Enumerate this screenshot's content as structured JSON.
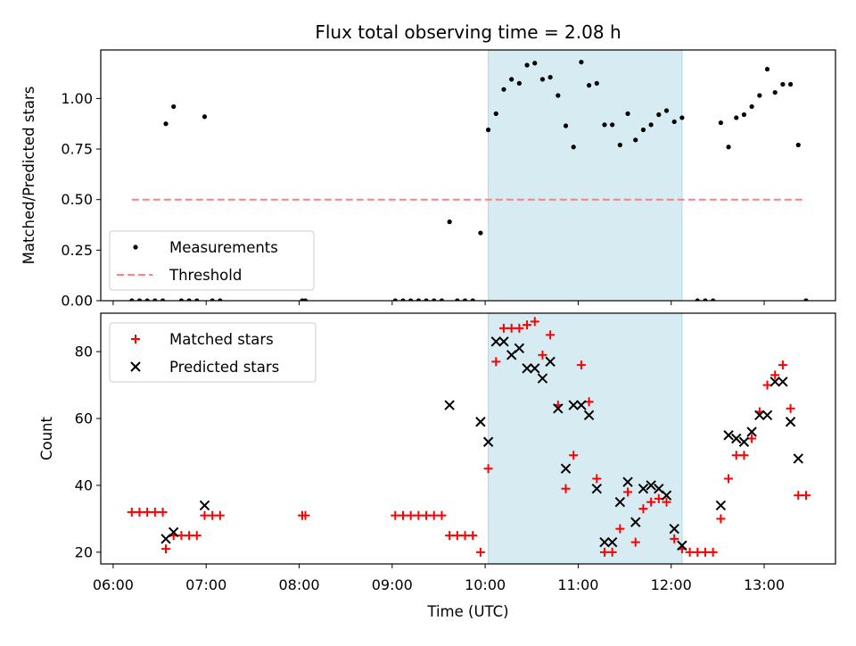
{
  "chart_data": {
    "title": "Flux total observing time = 2.08 h",
    "xlabel": "Time (UTC)",
    "x_tick_labels": [
      "06:00",
      "07:00",
      "08:00",
      "09:00",
      "10:00",
      "11:00",
      "12:00",
      "13:00"
    ],
    "shaded_interval": [
      "10:02",
      "12:07"
    ],
    "shade_color": "#add8e6",
    "panels": [
      {
        "type": "scatter",
        "ylabel": "Matched/Predicted stars",
        "ylim": [
          0,
          1.24
        ],
        "y_tick_labels": [
          "0.00",
          "0.25",
          "0.50",
          "0.75",
          "1.00"
        ],
        "legend_position": "lower-left",
        "series": [
          {
            "name": "Measurements",
            "marker": "dot",
            "color": "#000000",
            "points": [
              [
                "06:12",
                0
              ],
              [
                "06:17",
                0
              ],
              [
                "06:22",
                0
              ],
              [
                "06:27",
                0
              ],
              [
                "06:32",
                0
              ],
              [
                "06:34",
                0.875
              ],
              [
                "06:39",
                0.96
              ],
              [
                "06:44",
                0
              ],
              [
                "06:49",
                0
              ],
              [
                "06:54",
                0
              ],
              [
                "06:59",
                0.91
              ],
              [
                "07:04",
                0
              ],
              [
                "07:09",
                0
              ],
              [
                "08:02",
                0
              ],
              [
                "08:04",
                0
              ],
              [
                "09:02",
                0
              ],
              [
                "09:07",
                0
              ],
              [
                "09:12",
                0
              ],
              [
                "09:17",
                0
              ],
              [
                "09:22",
                0
              ],
              [
                "09:27",
                0
              ],
              [
                "09:32",
                0
              ],
              [
                "09:37",
                0.39
              ],
              [
                "09:42",
                0
              ],
              [
                "09:47",
                0
              ],
              [
                "09:52",
                0
              ],
              [
                "09:57",
                0.335
              ],
              [
                "10:02",
                0.845
              ],
              [
                "10:07",
                0.925
              ],
              [
                "10:12",
                1.045
              ],
              [
                "10:17",
                1.095
              ],
              [
                "10:22",
                1.075
              ],
              [
                "10:27",
                1.165
              ],
              [
                "10:32",
                1.175
              ],
              [
                "10:37",
                1.095
              ],
              [
                "10:42",
                1.105
              ],
              [
                "10:47",
                1.015
              ],
              [
                "10:52",
                0.865
              ],
              [
                "10:57",
                0.76
              ],
              [
                "11:02",
                1.18
              ],
              [
                "11:07",
                1.065
              ],
              [
                "11:12",
                1.075
              ],
              [
                "11:17",
                0.87
              ],
              [
                "11:22",
                0.87
              ],
              [
                "11:27",
                0.77
              ],
              [
                "11:32",
                0.925
              ],
              [
                "11:37",
                0.795
              ],
              [
                "11:42",
                0.845
              ],
              [
                "11:47",
                0.87
              ],
              [
                "11:52",
                0.92
              ],
              [
                "11:57",
                0.94
              ],
              [
                "12:02",
                0.885
              ],
              [
                "12:07",
                0.905
              ],
              [
                "12:17",
                0
              ],
              [
                "12:22",
                0
              ],
              [
                "12:27",
                0
              ],
              [
                "12:32",
                0.88
              ],
              [
                "12:37",
                0.76
              ],
              [
                "12:42",
                0.905
              ],
              [
                "12:47",
                0.92
              ],
              [
                "12:52",
                0.96
              ],
              [
                "12:57",
                1.015
              ],
              [
                "13:02",
                1.145
              ],
              [
                "13:07",
                1.03
              ],
              [
                "13:12",
                1.07
              ],
              [
                "13:17",
                1.07
              ],
              [
                "13:22",
                0.77
              ],
              [
                "13:27",
                0
              ]
            ]
          },
          {
            "name": "Threshold",
            "marker": "dashed-line",
            "color": "#ff8080",
            "points": [
              [
                "06:12",
                0.5
              ],
              [
                "13:27",
                0.5
              ]
            ]
          }
        ]
      },
      {
        "type": "scatter",
        "ylabel": "Count",
        "ylim": [
          16.5,
          91.5
        ],
        "y_tick_labels": [
          "20",
          "40",
          "60",
          "80"
        ],
        "legend_position": "top-left",
        "series": [
          {
            "name": "Matched stars",
            "marker": "plus",
            "color": "#ff0000",
            "points": [
              [
                "06:12",
                32
              ],
              [
                "06:17",
                32
              ],
              [
                "06:22",
                32
              ],
              [
                "06:27",
                32
              ],
              [
                "06:32",
                32
              ],
              [
                "06:34",
                21
              ],
              [
                "06:39",
                25
              ],
              [
                "06:44",
                25
              ],
              [
                "06:49",
                25
              ],
              [
                "06:54",
                25
              ],
              [
                "06:59",
                31
              ],
              [
                "07:04",
                31
              ],
              [
                "07:09",
                31
              ],
              [
                "08:02",
                31
              ],
              [
                "08:04",
                31
              ],
              [
                "09:02",
                31
              ],
              [
                "09:07",
                31
              ],
              [
                "09:12",
                31
              ],
              [
                "09:17",
                31
              ],
              [
                "09:22",
                31
              ],
              [
                "09:27",
                31
              ],
              [
                "09:32",
                31
              ],
              [
                "09:37",
                25
              ],
              [
                "09:42",
                25
              ],
              [
                "09:47",
                25
              ],
              [
                "09:52",
                25
              ],
              [
                "09:57",
                20
              ],
              [
                "10:02",
                45
              ],
              [
                "10:07",
                77
              ],
              [
                "10:12",
                87
              ],
              [
                "10:17",
                87
              ],
              [
                "10:22",
                87
              ],
              [
                "10:27",
                88
              ],
              [
                "10:32",
                89
              ],
              [
                "10:37",
                79
              ],
              [
                "10:42",
                85
              ],
              [
                "10:47",
                64
              ],
              [
                "10:52",
                39
              ],
              [
                "10:57",
                49
              ],
              [
                "11:02",
                76
              ],
              [
                "11:07",
                65
              ],
              [
                "11:12",
                42
              ],
              [
                "11:17",
                20
              ],
              [
                "11:22",
                20
              ],
              [
                "11:27",
                27
              ],
              [
                "11:32",
                38
              ],
              [
                "11:37",
                23
              ],
              [
                "11:42",
                33
              ],
              [
                "11:47",
                35
              ],
              [
                "11:52",
                36
              ],
              [
                "11:57",
                35
              ],
              [
                "12:02",
                24
              ],
              [
                "12:07",
                21
              ],
              [
                "12:12",
                20
              ],
              [
                "12:17",
                20
              ],
              [
                "12:22",
                20
              ],
              [
                "12:27",
                20
              ],
              [
                "12:32",
                30
              ],
              [
                "12:37",
                42
              ],
              [
                "12:42",
                49
              ],
              [
                "12:47",
                49
              ],
              [
                "12:52",
                54
              ],
              [
                "12:57",
                62
              ],
              [
                "13:02",
                70
              ],
              [
                "13:07",
                73
              ],
              [
                "13:12",
                76
              ],
              [
                "13:17",
                63
              ],
              [
                "13:22",
                37
              ],
              [
                "13:27",
                37
              ]
            ]
          },
          {
            "name": "Predicted stars",
            "marker": "x",
            "color": "#000000",
            "points": [
              [
                "06:34",
                24
              ],
              [
                "06:39",
                26
              ],
              [
                "06:59",
                34
              ],
              [
                "09:37",
                64
              ],
              [
                "09:57",
                59
              ],
              [
                "10:02",
                53
              ],
              [
                "10:07",
                83
              ],
              [
                "10:12",
                83
              ],
              [
                "10:17",
                79
              ],
              [
                "10:22",
                81
              ],
              [
                "10:27",
                75
              ],
              [
                "10:32",
                75
              ],
              [
                "10:37",
                72
              ],
              [
                "10:42",
                77
              ],
              [
                "10:47",
                63
              ],
              [
                "10:52",
                45
              ],
              [
                "10:57",
                64
              ],
              [
                "11:02",
                64
              ],
              [
                "11:07",
                61
              ],
              [
                "11:12",
                39
              ],
              [
                "11:17",
                23
              ],
              [
                "11:22",
                23
              ],
              [
                "11:27",
                35
              ],
              [
                "11:32",
                41
              ],
              [
                "11:37",
                29
              ],
              [
                "11:42",
                39
              ],
              [
                "11:47",
                40
              ],
              [
                "11:52",
                39
              ],
              [
                "11:57",
                37
              ],
              [
                "12:02",
                27
              ],
              [
                "12:07",
                22
              ],
              [
                "12:32",
                34
              ],
              [
                "12:37",
                55
              ],
              [
                "12:42",
                54
              ],
              [
                "12:47",
                53
              ],
              [
                "12:52",
                56
              ],
              [
                "12:57",
                61
              ],
              [
                "13:02",
                61
              ],
              [
                "13:07",
                71
              ],
              [
                "13:12",
                71
              ],
              [
                "13:17",
                59
              ],
              [
                "13:22",
                48
              ]
            ]
          }
        ]
      }
    ]
  }
}
